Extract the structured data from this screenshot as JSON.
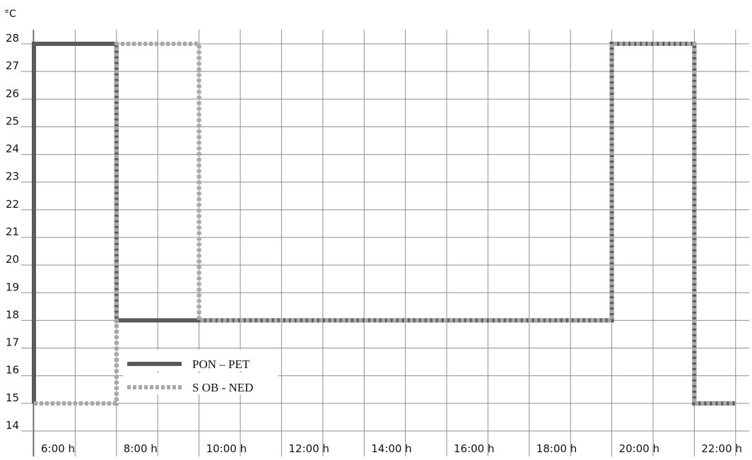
{
  "chart_data": {
    "type": "line",
    "ylabel": "°C",
    "ylim": [
      14,
      28
    ],
    "yticks": [
      "14",
      "15",
      "16",
      "17",
      "18",
      "19",
      "20",
      "21",
      "22",
      "23",
      "24",
      "25",
      "26",
      "27",
      "28"
    ],
    "xlim": [
      "5:50 h",
      "22:50 h"
    ],
    "xticks": [
      "6:00 h",
      "8:00 h",
      "10:00 h",
      "12:00 h",
      "14:00 h",
      "16:00 h",
      "18:00 h",
      "20:00 h",
      "22:00 h"
    ],
    "grid": true,
    "legend_position": "bottom-left",
    "series": [
      {
        "name": "PON – PET",
        "style": "solid",
        "color": "#5a5a5a",
        "points": [
          [
            "5:50 h",
            15
          ],
          [
            "5:50 h",
            28
          ],
          [
            "7:50 h",
            28
          ],
          [
            "7:50 h",
            18
          ],
          [
            "19:50 h",
            18
          ],
          [
            "19:50 h",
            28
          ],
          [
            "21:50 h",
            28
          ],
          [
            "21:50 h",
            15
          ],
          [
            "22:50 h",
            15
          ]
        ]
      },
      {
        "name": "S OB - NED",
        "style": "dotted",
        "color": "#a8a8a8",
        "points": [
          [
            "5:50 h",
            15
          ],
          [
            "7:50 h",
            15
          ],
          [
            "7:50 h",
            28
          ],
          [
            "9:50 h",
            28
          ],
          [
            "9:50 h",
            18
          ],
          [
            "19:50 h",
            18
          ],
          [
            "19:50 h",
            28
          ],
          [
            "21:50 h",
            28
          ],
          [
            "21:50 h",
            15
          ],
          [
            "22:50 h",
            15
          ]
        ]
      }
    ]
  }
}
